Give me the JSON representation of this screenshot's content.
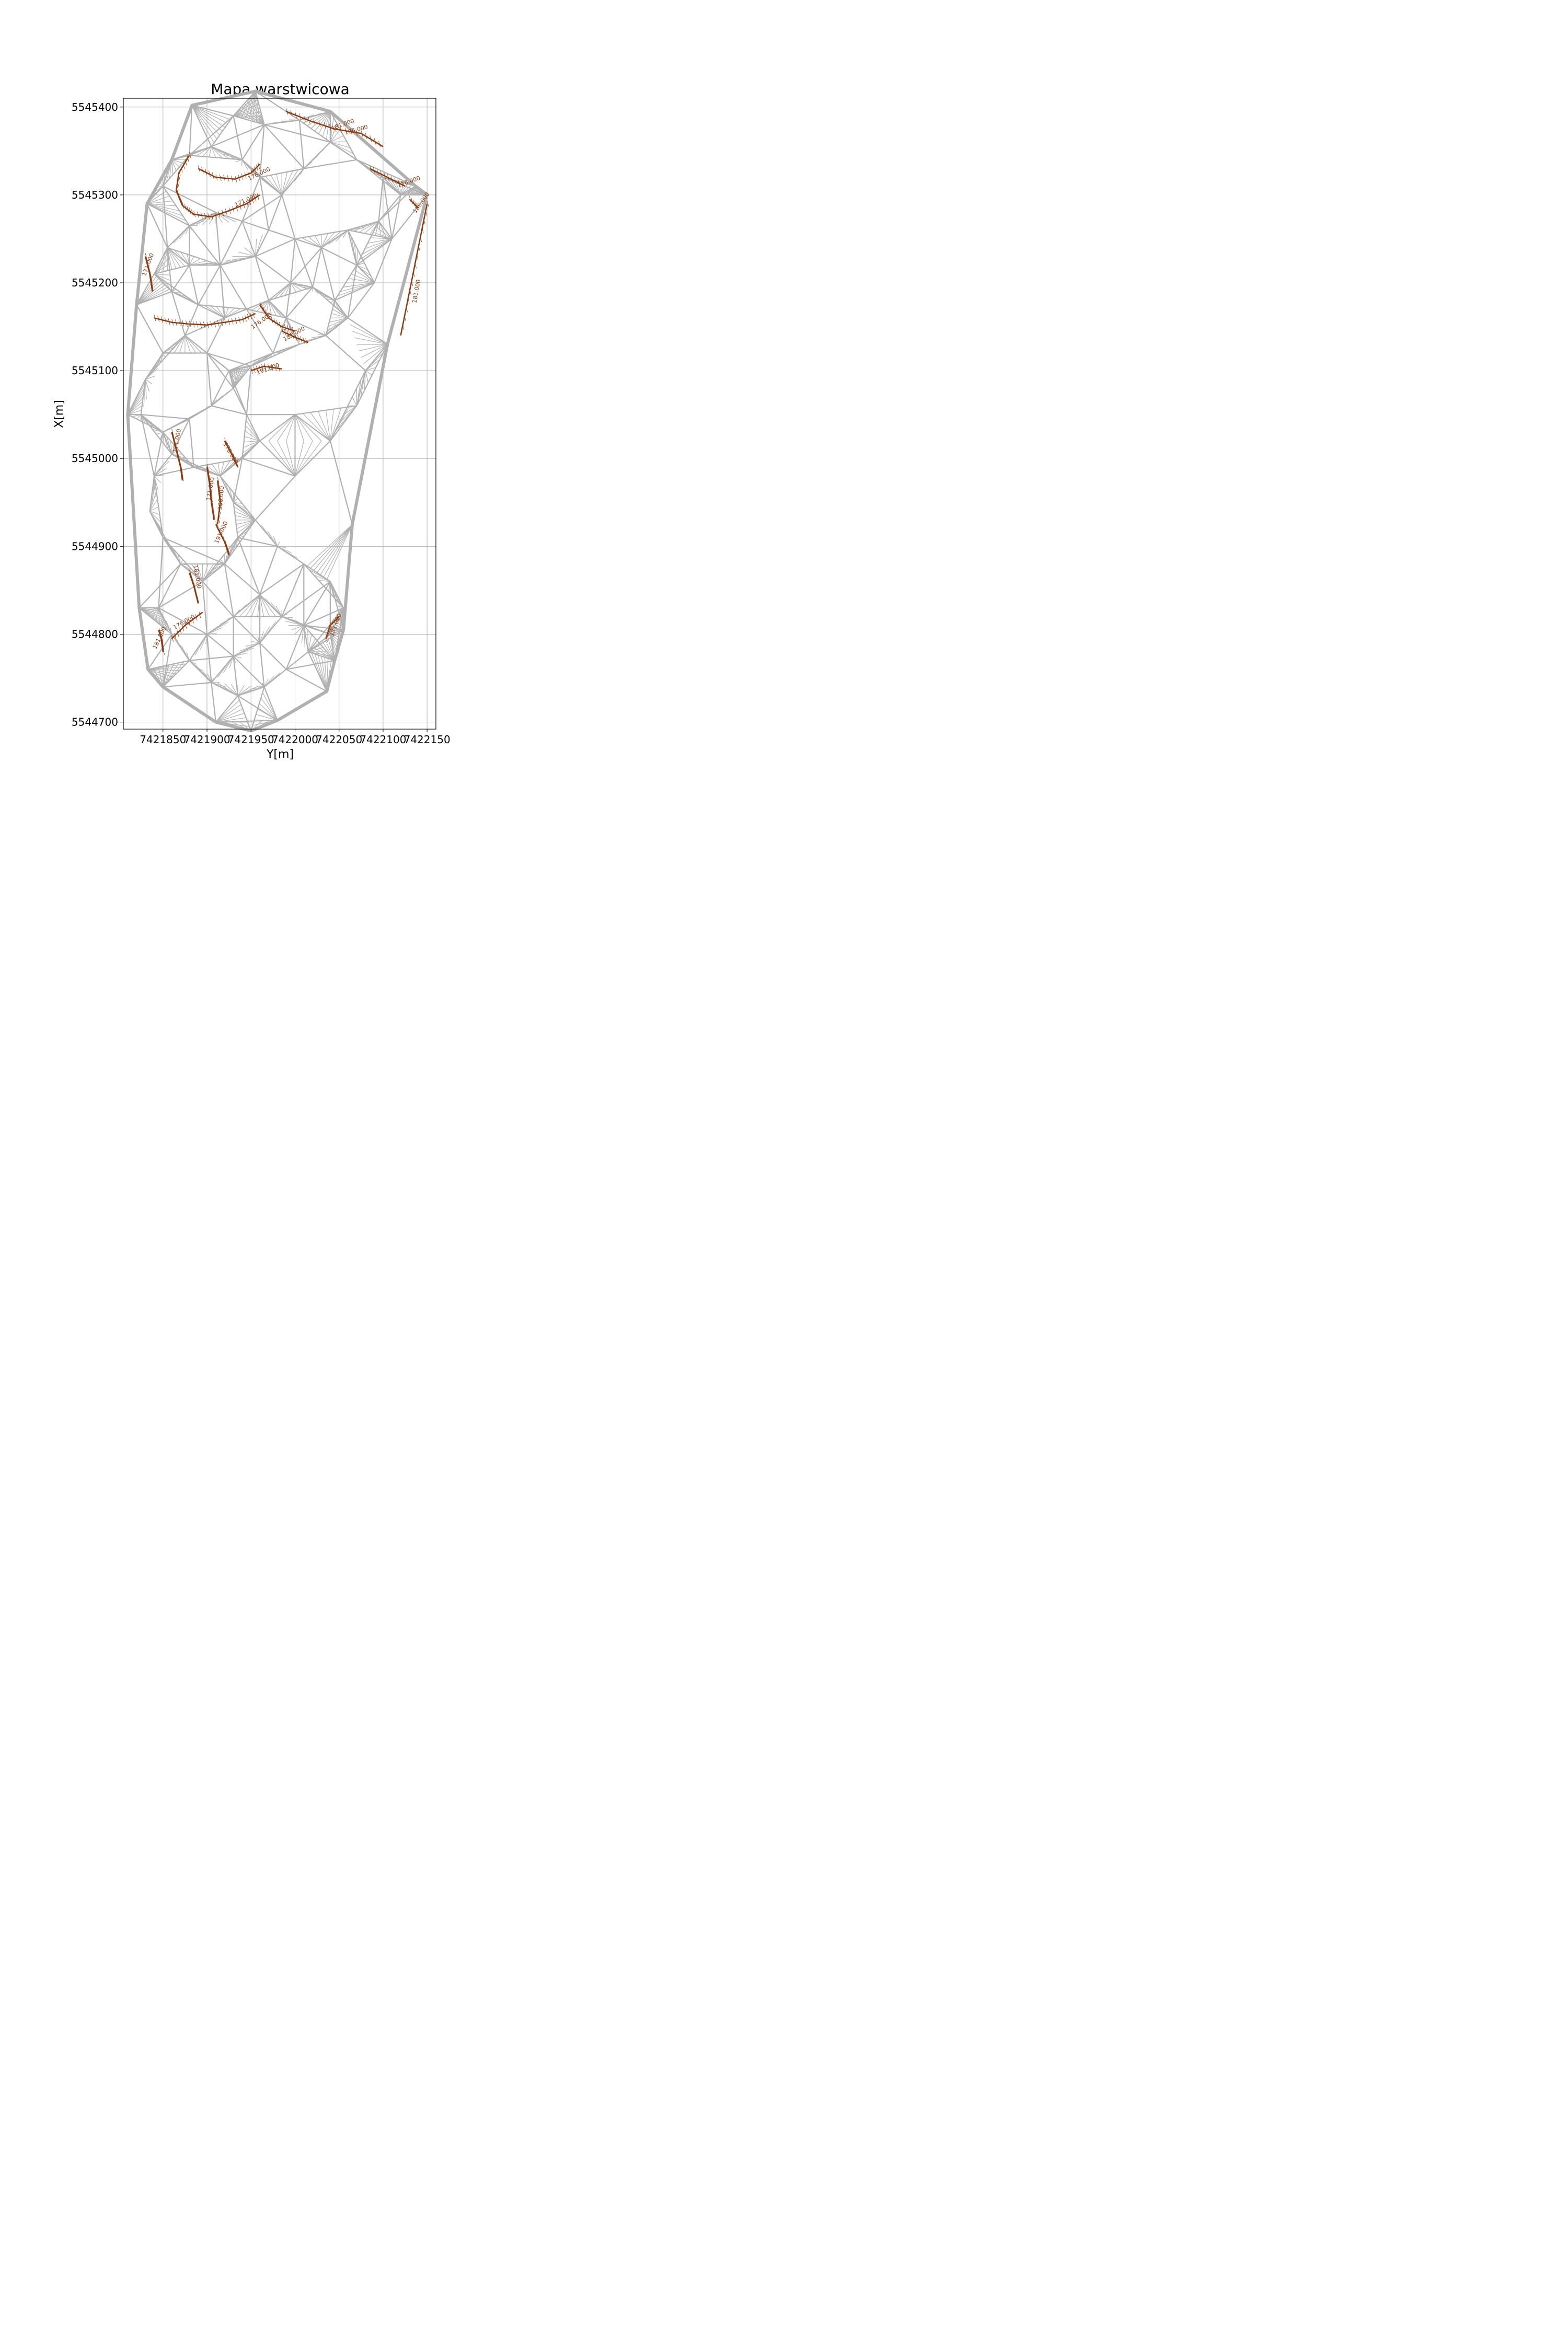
{
  "chart_data": {
    "type": "contour",
    "title": "Mapa warstwicowa",
    "xlabel": "Y[m]",
    "ylabel": "X[m]",
    "xlim": [
      7421805,
      7422160
    ],
    "ylim": [
      5544692,
      5545410
    ],
    "x_ticks": [
      {
        "value": 7421850,
        "label": "7421850"
      },
      {
        "value": 7421900,
        "label": "7421900"
      },
      {
        "value": 7421950,
        "label": "7421950"
      },
      {
        "value": 7422000,
        "label": "7422000"
      },
      {
        "value": 7422050,
        "label": "7422050"
      },
      {
        "value": 7422100,
        "label": "7422100"
      },
      {
        "value": 7422150,
        "label": "7422150"
      }
    ],
    "y_ticks": [
      {
        "value": 5544700,
        "label": "5544700"
      },
      {
        "value": 5544800,
        "label": "5544800"
      },
      {
        "value": 5544900,
        "label": "5544900"
      },
      {
        "value": 5545000,
        "label": "5545000"
      },
      {
        "value": 5545100,
        "label": "5545100"
      },
      {
        "value": 5545200,
        "label": "5545200"
      },
      {
        "value": 5545300,
        "label": "5545300"
      },
      {
        "value": 5545400,
        "label": "5545400"
      }
    ],
    "grid": true,
    "colors": {
      "triangulation": "#b0b0b0",
      "contours": "#8b3a0f",
      "grid": "#b0b0b0"
    },
    "hull": [
      [
        7421883,
        5545402
      ],
      [
        7421955,
        5545418
      ],
      [
        7422040,
        5545395
      ],
      [
        7422137,
        5545310
      ],
      [
        7422150,
        5545300
      ],
      [
        7422105,
        5545130
      ],
      [
        7422065,
        5544925
      ],
      [
        7422055,
        5544805
      ],
      [
        7422045,
        5544770
      ],
      [
        7422036,
        5544735
      ],
      [
        7421980,
        5544702
      ],
      [
        7421950,
        5544690
      ],
      [
        7421910,
        5544700
      ],
      [
        7421850,
        5544740
      ],
      [
        7421833,
        5544760
      ],
      [
        7421823,
        5544830
      ],
      [
        7421810,
        5545050
      ],
      [
        7421820,
        5545175
      ],
      [
        7421832,
        5545290
      ],
      [
        7421860,
        5545340
      ]
    ],
    "triangulation_points": [
      [
        7421850,
        5545310
      ],
      [
        7421880,
        5545345
      ],
      [
        7421905,
        5545355
      ],
      [
        7421940,
        5545340
      ],
      [
        7421960,
        5545320
      ],
      [
        7421985,
        5545300
      ],
      [
        7422010,
        5545330
      ],
      [
        7422040,
        5545360
      ],
      [
        7422070,
        5545340
      ],
      [
        7422100,
        5545320
      ],
      [
        7422120,
        5545300
      ],
      [
        7422095,
        5545270
      ],
      [
        7422060,
        5545260
      ],
      [
        7422030,
        5545240
      ],
      [
        7422000,
        5545250
      ],
      [
        7421970,
        5545260
      ],
      [
        7421940,
        5545270
      ],
      [
        7421910,
        5545280
      ],
      [
        7421880,
        5545265
      ],
      [
        7421855,
        5545240
      ],
      [
        7421840,
        5545210
      ],
      [
        7421860,
        5545190
      ],
      [
        7421890,
        5545175
      ],
      [
        7421920,
        5545160
      ],
      [
        7421945,
        5545170
      ],
      [
        7421970,
        5545180
      ],
      [
        7421995,
        5545200
      ],
      [
        7422020,
        5545195
      ],
      [
        7422045,
        5545180
      ],
      [
        7422060,
        5545160
      ],
      [
        7422035,
        5545140
      ],
      [
        7422005,
        5545130
      ],
      [
        7421975,
        5545120
      ],
      [
        7421950,
        5545105
      ],
      [
        7421930,
        5545080
      ],
      [
        7421905,
        5545060
      ],
      [
        7421880,
        5545045
      ],
      [
        7421850,
        5545030
      ],
      [
        7421825,
        5545050
      ],
      [
        7421830,
        5545090
      ],
      [
        7421850,
        5545120
      ],
      [
        7421875,
        5545140
      ],
      [
        7421900,
        5545120
      ],
      [
        7421925,
        5545100
      ],
      [
        7421945,
        5545050
      ],
      [
        7421960,
        5545020
      ],
      [
        7421940,
        5545000
      ],
      [
        7421915,
        5544980
      ],
      [
        7421885,
        5544990
      ],
      [
        7421860,
        5545005
      ],
      [
        7421840,
        5544980
      ],
      [
        7421835,
        5544940
      ],
      [
        7421850,
        5544910
      ],
      [
        7421870,
        5544880
      ],
      [
        7421895,
        5544860
      ],
      [
        7421920,
        5544880
      ],
      [
        7421935,
        5544910
      ],
      [
        7421930,
        5544950
      ],
      [
        7421955,
        5544930
      ],
      [
        7421980,
        5544900
      ],
      [
        7422010,
        5544880
      ],
      [
        7422040,
        5544860
      ],
      [
        7422055,
        5544830
      ],
      [
        7422040,
        5544800
      ],
      [
        7422015,
        5544780
      ],
      [
        7421990,
        5544760
      ],
      [
        7421965,
        5544740
      ],
      [
        7421935,
        5544730
      ],
      [
        7421905,
        5544745
      ],
      [
        7421880,
        5544770
      ],
      [
        7421860,
        5544800
      ],
      [
        7421845,
        5544830
      ],
      [
        7421900,
        5544800
      ],
      [
        7421930,
        5544820
      ],
      [
        7421960,
        5544845
      ],
      [
        7421985,
        5544820
      ],
      [
        7422010,
        5544810
      ],
      [
        7421960,
        5544790
      ],
      [
        7421930,
        5544775
      ],
      [
        7422000,
        5545050
      ],
      [
        7422040,
        5545020
      ],
      [
        7422070,
        5545060
      ],
      [
        7422080,
        5545100
      ],
      [
        7422090,
        5545200
      ],
      [
        7422110,
        5545250
      ],
      [
        7422000,
        5544980
      ],
      [
        7421990,
        5545160
      ],
      [
        7421915,
        5545220
      ],
      [
        7421955,
        5545230
      ],
      [
        7421880,
        5545220
      ],
      [
        7422070,
        5545220
      ],
      [
        7421965,
        5545380
      ],
      [
        7421930,
        5545390
      ],
      [
        7422005,
        5545385
      ]
    ],
    "contours": [
      {
        "level": "171.000",
        "points": [
          [
            7421840,
            5545160
          ],
          [
            7421860,
            5545155
          ],
          [
            7421880,
            5545153
          ],
          [
            7421900,
            5545152
          ],
          [
            7421920,
            5545155
          ],
          [
            7421940,
            5545158
          ],
          [
            7421955,
            5545165
          ]
        ]
      },
      {
        "level": "171.000",
        "points": [
          [
            7421880,
            5545345
          ],
          [
            7421868,
            5545325
          ],
          [
            7421865,
            5545305
          ],
          [
            7421872,
            5545288
          ],
          [
            7421885,
            5545278
          ],
          [
            7421905,
            5545275
          ],
          [
            7421925,
            5545282
          ],
          [
            7421945,
            5545290
          ],
          [
            7421960,
            5545300
          ]
        ]
      },
      {
        "level": "176.000",
        "points": [
          [
            7421890,
            5545330
          ],
          [
            7421910,
            5545320
          ],
          [
            7421932,
            5545318
          ],
          [
            7421950,
            5545325
          ],
          [
            7421960,
            5545335
          ]
        ]
      },
      {
        "level": "181.000",
        "points": [
          [
            7421990,
            5545395
          ],
          [
            7422015,
            5545385
          ],
          [
            7422045,
            5545375
          ],
          [
            7422075,
            5545370
          ],
          [
            7422100,
            5545355
          ]
        ]
      },
      {
        "level": "176.000",
        "points": [
          [
            7422085,
            5545330
          ],
          [
            7422105,
            5545320
          ],
          [
            7422125,
            5545310
          ]
        ]
      },
      {
        "level": "186.000",
        "points": [
          [
            7422130,
            5545295
          ],
          [
            7422140,
            5545285
          ]
        ]
      },
      {
        "level": "181.000",
        "points": [
          [
            7422150,
            5545290
          ],
          [
            7422140,
            5545240
          ],
          [
            7422130,
            5545190
          ],
          [
            7422120,
            5545140
          ]
        ]
      },
      {
        "level": "176.000",
        "points": [
          [
            7421960,
            5545175
          ],
          [
            7421970,
            5545160
          ],
          [
            7421985,
            5545150
          ],
          [
            7422000,
            5545145
          ]
        ]
      },
      {
        "level": "181.000",
        "points": [
          [
            7421985,
            5545145
          ],
          [
            7422000,
            5545138
          ],
          [
            7422015,
            5545132
          ]
        ]
      },
      {
        "level": "191.000",
        "points": [
          [
            7421950,
            5545100
          ],
          [
            7421965,
            5545105
          ],
          [
            7421985,
            5545102
          ]
        ]
      },
      {
        "level": "171.000",
        "points": [
          [
            7421860,
            5545030
          ],
          [
            7421865,
            5545010
          ],
          [
            7421870,
            5544990
          ],
          [
            7421872,
            5544975
          ]
        ]
      },
      {
        "level": "176.000",
        "points": [
          [
            7421920,
            5545020
          ],
          [
            7421928,
            5545005
          ],
          [
            7421935,
            5544990
          ]
        ]
      },
      {
        "level": "171.000",
        "points": [
          [
            7421900,
            5544990
          ],
          [
            7421903,
            5544970
          ],
          [
            7421905,
            5544950
          ],
          [
            7421908,
            5544930
          ]
        ]
      },
      {
        "level": "186.000",
        "points": [
          [
            7421912,
            5544975
          ],
          [
            7421915,
            5544950
          ],
          [
            7421912,
            5544925
          ]
        ]
      },
      {
        "level": "191.000",
        "points": [
          [
            7421910,
            5544925
          ],
          [
            7421920,
            5544905
          ],
          [
            7421925,
            5544890
          ]
        ]
      },
      {
        "level": "181.000",
        "points": [
          [
            7421880,
            5544870
          ],
          [
            7421885,
            5544855
          ],
          [
            7421890,
            5544835
          ]
        ]
      },
      {
        "level": "176.000",
        "points": [
          [
            7421860,
            5544795
          ],
          [
            7421875,
            5544810
          ],
          [
            7421895,
            5544825
          ]
        ]
      },
      {
        "level": "181.000",
        "points": [
          [
            7421850,
            5544780
          ],
          [
            7421848,
            5544795
          ],
          [
            7421845,
            5544805
          ]
        ]
      },
      {
        "level": "181.000",
        "points": [
          [
            7422035,
            5544795
          ],
          [
            7422040,
            5544810
          ],
          [
            7422050,
            5544820
          ]
        ]
      },
      {
        "level": "171.000",
        "points": [
          [
            7421830,
            5545230
          ],
          [
            7421835,
            5545210
          ],
          [
            7421838,
            5545190
          ]
        ]
      }
    ],
    "contour_labels": [
      {
        "text": "181.000",
        "x": 7422055,
        "y": 5545378,
        "angle": -20
      },
      {
        "text": "186.000",
        "x": 7422070,
        "y": 5545372,
        "angle": -15
      },
      {
        "text": "176.000",
        "x": 7422130,
        "y": 5545313,
        "angle": -20
      },
      {
        "text": "186.000",
        "x": 7422145,
        "y": 5545290,
        "angle": -55
      },
      {
        "text": "176.000",
        "x": 7421960,
        "y": 5545322,
        "angle": -25
      },
      {
        "text": "171.000",
        "x": 7421945,
        "y": 5545292,
        "angle": -25
      },
      {
        "text": "171.000",
        "x": 7421835,
        "y": 5545220,
        "angle": -70
      },
      {
        "text": "181.000",
        "x": 7422140,
        "y": 5545190,
        "angle": -80
      },
      {
        "text": "176.000",
        "x": 7421963,
        "y": 5545155,
        "angle": -35
      },
      {
        "text": "181.000",
        "x": 7422000,
        "y": 5545140,
        "angle": -30
      },
      {
        "text": "191.000",
        "x": 7421970,
        "y": 5545100,
        "angle": -20
      },
      {
        "text": "176.000",
        "x": 7421925,
        "y": 5545005,
        "angle": 60
      },
      {
        "text": "171.000",
        "x": 7421868,
        "y": 5545020,
        "angle": -80
      },
      {
        "text": "171.000",
        "x": 7421906,
        "y": 5544965,
        "angle": -80
      },
      {
        "text": "186.000",
        "x": 7421918,
        "y": 5544955,
        "angle": -85
      },
      {
        "text": "191.000",
        "x": 7421918,
        "y": 5544915,
        "angle": -65
      },
      {
        "text": "181.000",
        "x": 7421887,
        "y": 5544865,
        "angle": 80
      },
      {
        "text": "176.000",
        "x": 7421875,
        "y": 5544812,
        "angle": -30
      },
      {
        "text": "181.000",
        "x": 7421848,
        "y": 5544795,
        "angle": -65
      },
      {
        "text": "181.000",
        "x": 7422048,
        "y": 5544810,
        "angle": -70
      }
    ]
  }
}
